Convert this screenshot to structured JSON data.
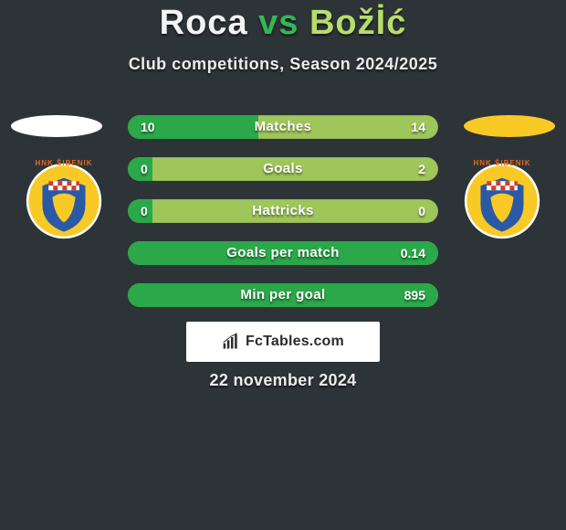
{
  "background_color": "#2d3438",
  "title": {
    "player1": "Roca",
    "vs": "vs",
    "player2": "Božİć",
    "player1_color": "#f2f2f2",
    "vs_color": "#32b856",
    "player2_color": "#b6dd6c",
    "fontsize": 38
  },
  "subtitle": "Club competitions, Season 2024/2025",
  "side_shapes": {
    "oval_left_color": "#ffffff",
    "oval_right_color": "#f9c926",
    "crest_ring_color": "#ffffff",
    "crest_main_color": "#f9c926",
    "crest_secondary_color": "#2a59a6",
    "crest_accent_color": "#e26a1e",
    "crest_text": "HNK ŠIBENIK"
  },
  "rows": {
    "track_color": "#9fc65a",
    "fill_color": "#2ba84a",
    "text_color": "#ffffff",
    "label_fontsize": 15,
    "value_fontsize": 14,
    "items": [
      {
        "label": "Matches",
        "left": "10",
        "right": "14",
        "fill_pct": 42
      },
      {
        "label": "Goals",
        "left": "0",
        "right": "2",
        "fill_pct": 8
      },
      {
        "label": "Hattricks",
        "left": "0",
        "right": "0",
        "fill_pct": 8
      },
      {
        "label": "Goals per match",
        "left": "",
        "right": "0.14",
        "fill_pct": 100
      },
      {
        "label": "Min per goal",
        "left": "",
        "right": "895",
        "fill_pct": 100
      }
    ]
  },
  "brand": {
    "text": "FcTables.com",
    "card_bg": "#ffffff",
    "text_color": "#2c2c2c",
    "icon_color": "#2c2c2c"
  },
  "date": "22 november 2024"
}
